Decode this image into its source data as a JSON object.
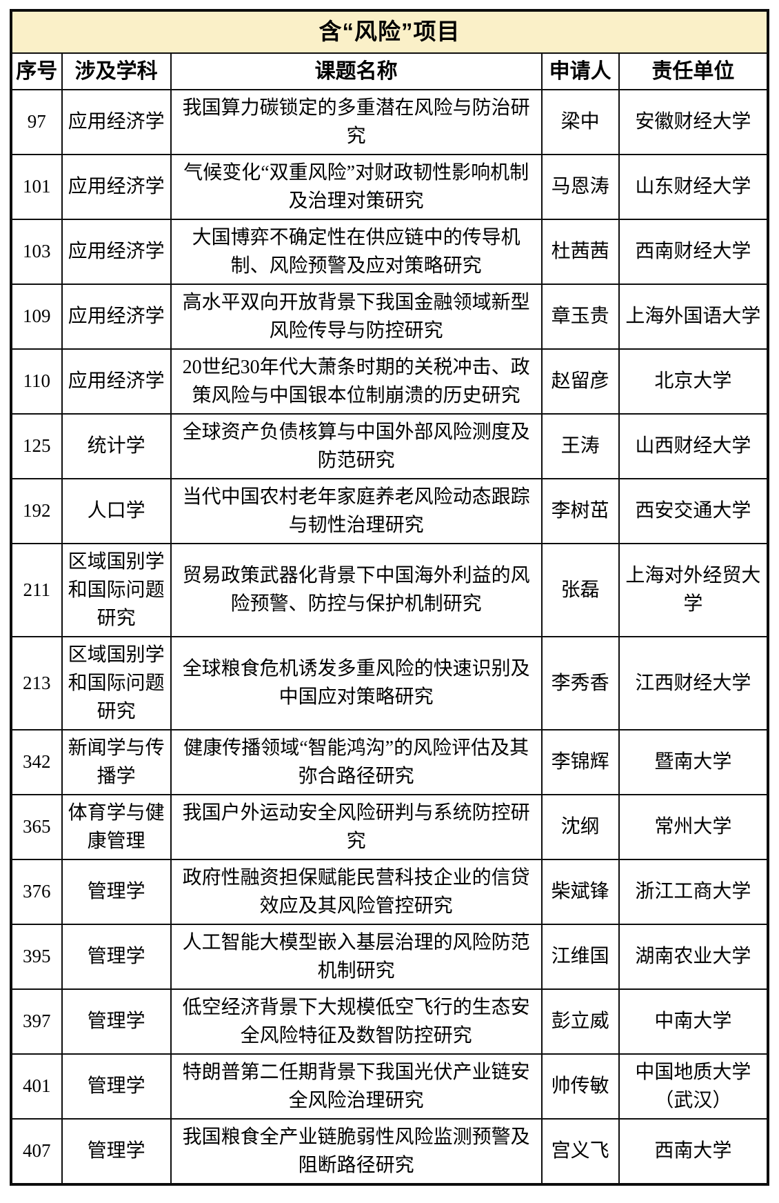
{
  "title": "含“风险”项目",
  "colors": {
    "title_background": "#faf0c8",
    "border": "#0d0d0d",
    "text": "#000000"
  },
  "table": {
    "headers": [
      "序号",
      "涉及学科",
      "课题名称",
      "申请人",
      "责任单位"
    ],
    "rows": [
      {
        "no": "97",
        "discipline": "应用经济学",
        "project": "我国算力碳锁定的多重潜在风险与防治研究",
        "applicant": "梁中",
        "institution": "安徽财经大学"
      },
      {
        "no": "101",
        "discipline": "应用经济学",
        "project": "气候变化“双重风险”对财政韧性影响机制及治理对策研究",
        "applicant": "马恩涛",
        "institution": "山东财经大学"
      },
      {
        "no": "103",
        "discipline": "应用经济学",
        "project": "大国博弈不确定性在供应链中的传导机制、风险预警及应对策略研究",
        "applicant": "杜茜茜",
        "institution": "西南财经大学"
      },
      {
        "no": "109",
        "discipline": "应用经济学",
        "project": "高水平双向开放背景下我国金融领域新型风险传导与防控研究",
        "applicant": "章玉贵",
        "institution": "上海外国语大学"
      },
      {
        "no": "110",
        "discipline": "应用经济学",
        "project": "20世纪30年代大萧条时期的关税冲击、政策风险与中国银本位制崩溃的历史研究",
        "applicant": "赵留彦",
        "institution": "北京大学"
      },
      {
        "no": "125",
        "discipline": "统计学",
        "project": "全球资产负债核算与中国外部风险测度及防范研究",
        "applicant": "王涛",
        "institution": "山西财经大学"
      },
      {
        "no": "192",
        "discipline": "人口学",
        "project": "当代中国农村老年家庭养老风险动态跟踪与韧性治理研究",
        "applicant": "李树茁",
        "institution": "西安交通大学"
      },
      {
        "no": "211",
        "discipline": "区域国别学和国际问题研究",
        "project": "贸易政策武器化背景下中国海外利益的风险预警、防控与保护机制研究",
        "applicant": "张磊",
        "institution": "上海对外经贸大学"
      },
      {
        "no": "213",
        "discipline": "区域国别学和国际问题研究",
        "project": "全球粮食危机诱发多重风险的快速识别及中国应对策略研究",
        "applicant": "李秀香",
        "institution": "江西财经大学"
      },
      {
        "no": "342",
        "discipline": "新闻学与传播学",
        "project": "健康传播领域“智能鸿沟”的风险评估及其弥合路径研究",
        "applicant": "李锦辉",
        "institution": "暨南大学"
      },
      {
        "no": "365",
        "discipline": "体育学与健康管理",
        "project": "我国户外运动安全风险研判与系统防控研究",
        "applicant": "沈纲",
        "institution": "常州大学"
      },
      {
        "no": "376",
        "discipline": "管理学",
        "project": "政府性融资担保赋能民营科技企业的信贷效应及其风险管控研究",
        "applicant": "柴斌锋",
        "institution": "浙江工商大学"
      },
      {
        "no": "395",
        "discipline": "管理学",
        "project": "人工智能大模型嵌入基层治理的风险防范机制研究",
        "applicant": "江维国",
        "institution": "湖南农业大学"
      },
      {
        "no": "397",
        "discipline": "管理学",
        "project": "低空经济背景下大规模低空飞行的生态安全风险特征及数智防控研究",
        "applicant": "彭立威",
        "institution": "中南大学"
      },
      {
        "no": "401",
        "discipline": "管理学",
        "project": "特朗普第二任期背景下我国光伏产业链安全风险治理研究",
        "applicant": "帅传敏",
        "institution": "中国地质大学（武汉）"
      },
      {
        "no": "407",
        "discipline": "管理学",
        "project": "我国粮食全产业链脆弱性风险监测预警及阻断路径研究",
        "applicant": "宫义飞",
        "institution": "西南大学"
      }
    ]
  }
}
